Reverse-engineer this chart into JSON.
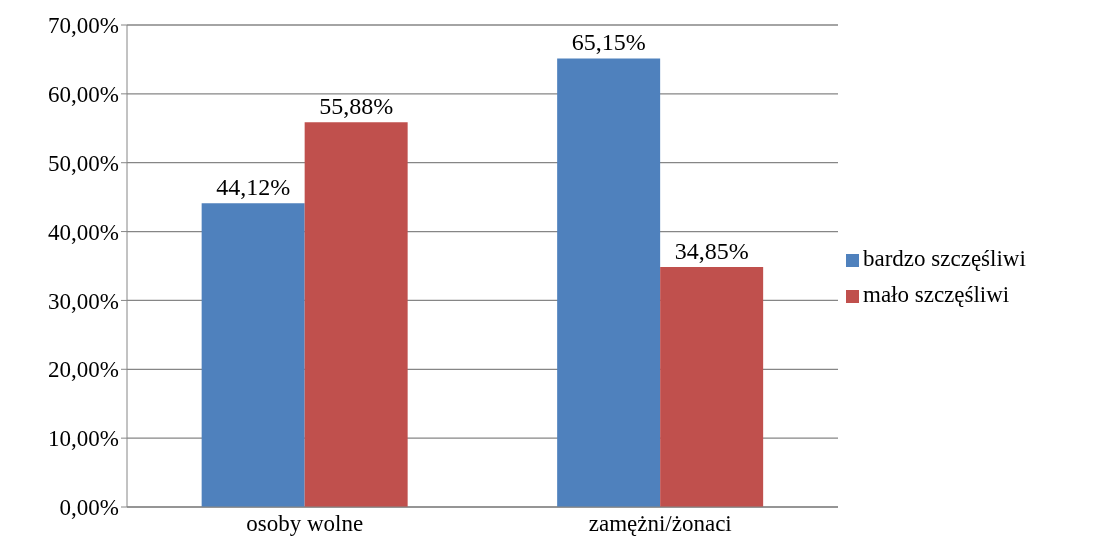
{
  "chart_data": {
    "type": "bar",
    "categories": [
      "osoby wolne",
      "zamężni/żonaci"
    ],
    "series": [
      {
        "name": "bardzo szczęśliwi",
        "color": "#4f81bd",
        "values": [
          44.12,
          65.15
        ],
        "value_labels": [
          "44,12%",
          "65,15%"
        ]
      },
      {
        "name": "mało szczęśliwi",
        "color": "#c0504d",
        "values": [
          55.88,
          34.85
        ],
        "value_labels": [
          "55,88%",
          "34,85%"
        ]
      }
    ],
    "ylim": [
      0,
      70
    ],
    "yticks": [
      {
        "value": 0,
        "label": "0,00%"
      },
      {
        "value": 10,
        "label": "10,00%"
      },
      {
        "value": 20,
        "label": "20,00%"
      },
      {
        "value": 30,
        "label": "30,00%"
      },
      {
        "value": 40,
        "label": "40,00%"
      },
      {
        "value": 50,
        "label": "50,00%"
      },
      {
        "value": 60,
        "label": "60,00%"
      },
      {
        "value": 70,
        "label": "70,00%"
      }
    ],
    "grid": "y",
    "legend": "right"
  }
}
